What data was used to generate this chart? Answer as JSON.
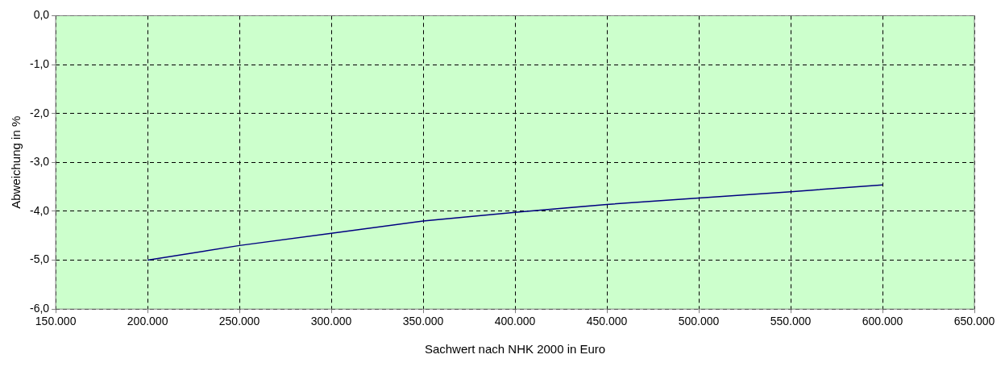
{
  "chart_data": {
    "type": "line",
    "xlabel": "Sachwert nach NHK 2000 in Euro",
    "ylabel": "Abweichung in %",
    "x": [
      200000,
      250000,
      300000,
      350000,
      400000,
      450000,
      500000,
      550000,
      600000
    ],
    "series": [
      {
        "color": "#000080",
        "values": [
          -5.0,
          -4.7,
          -4.45,
          -4.2,
          -4.02,
          -3.86,
          -3.73,
          -3.6,
          -3.46
        ]
      }
    ],
    "xlim": [
      150000,
      650000
    ],
    "xticks": [
      {
        "value": 150000,
        "label": "150.000"
      },
      {
        "value": 200000,
        "label": "200.000"
      },
      {
        "value": 250000,
        "label": "250.000"
      },
      {
        "value": 300000,
        "label": "300.000"
      },
      {
        "value": 350000,
        "label": "350.000"
      },
      {
        "value": 400000,
        "label": "400.000"
      },
      {
        "value": 450000,
        "label": "450.000"
      },
      {
        "value": 500000,
        "label": "500.000"
      },
      {
        "value": 550000,
        "label": "550.000"
      },
      {
        "value": 600000,
        "label": "600.000"
      },
      {
        "value": 650000,
        "label": "650.000"
      }
    ],
    "ylim": [
      -6,
      0
    ],
    "yticks": [
      {
        "value": -6,
        "label": "-6,0"
      },
      {
        "value": -5,
        "label": "-5,0"
      },
      {
        "value": -4,
        "label": "-4,0"
      },
      {
        "value": -3,
        "label": "-3,0"
      },
      {
        "value": -2,
        "label": "-2,0"
      },
      {
        "value": -1,
        "label": "-1,0"
      },
      {
        "value": 0,
        "label": "0,0"
      }
    ],
    "grid": true,
    "legend": false,
    "marker": "none",
    "line_style": "solid"
  }
}
